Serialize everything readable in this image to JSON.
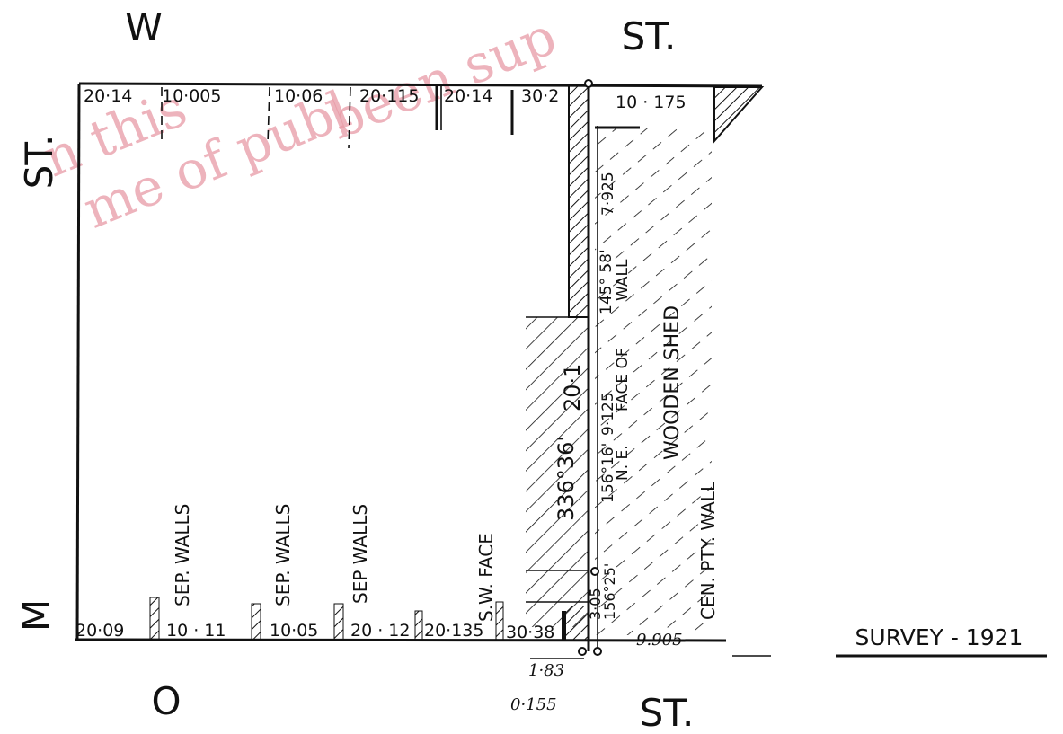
{
  "streets": {
    "top_w": "W",
    "top_st": "ST.",
    "left_st": "ST.",
    "left_m": "M",
    "bottom_o": "O",
    "bottom_st": "ST."
  },
  "survey_label": "SURVEY - 1921",
  "top_measurements": [
    "20·14",
    "10·005",
    "10·06",
    "20·115",
    "20·14",
    "30·2",
    "10 · 175"
  ],
  "bottom_measurements": [
    "20·09",
    "10 · 11",
    "10·05",
    "20 · 12",
    "20·135",
    "30·38",
    "9.905"
  ],
  "offsets": [
    "1·83",
    "0·155"
  ],
  "vertical_notes": [
    "SEP. WALLS",
    "SEP. WALLS",
    "SEP WALLS",
    "S.W. FACE",
    "336°36'",
    "20·1",
    "156°16'",
    "9·125",
    "145° 58'",
    "7·925",
    "N. E.",
    "FACE OF",
    "WALL",
    "WOODEN SHED",
    "CEN. PTY. WALL",
    "3·05",
    "156°25'"
  ],
  "watermark": [
    "n this",
    "me of publ",
    "been sup"
  ]
}
